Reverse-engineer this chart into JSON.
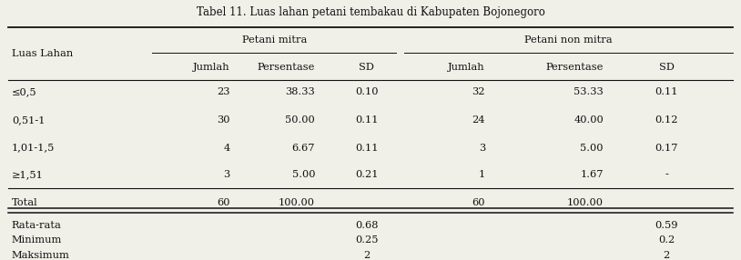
{
  "title": "Tabel 11. Luas lahan petani tembakau di Kabupaten Bojonegoro",
  "header_row2": [
    "Jumlah",
    "Persentase",
    "SD",
    "Jumlah",
    "Persentase",
    "SD"
  ],
  "data_rows": [
    [
      "≤0,5",
      "23",
      "38.33",
      "0.10",
      "32",
      "53.33",
      "0.11"
    ],
    [
      "0,51-1",
      "30",
      "50.00",
      "0.11",
      "24",
      "40.00",
      "0.12"
    ],
    [
      "1,01-1,5",
      "4",
      "6.67",
      "0.11",
      "3",
      "5.00",
      "0.17"
    ],
    [
      "≥1,51",
      "3",
      "5.00",
      "0.21",
      "1",
      "1.67",
      "-"
    ]
  ],
  "total_row": [
    "Total",
    "60",
    "100.00",
    "",
    "60",
    "100.00",
    ""
  ],
  "summary_rows": [
    [
      "Rata-rata",
      "",
      "",
      "0.68",
      "",
      "",
      "0.59"
    ],
    [
      "Minimum",
      "",
      "",
      "0.25",
      "",
      "",
      "0.2"
    ],
    [
      "Maksimum",
      "",
      "",
      "2",
      "",
      "",
      "2"
    ]
  ],
  "background_color": "#f0efe8",
  "text_color": "#111111",
  "font_size": 8.2,
  "title_font_size": 8.5
}
